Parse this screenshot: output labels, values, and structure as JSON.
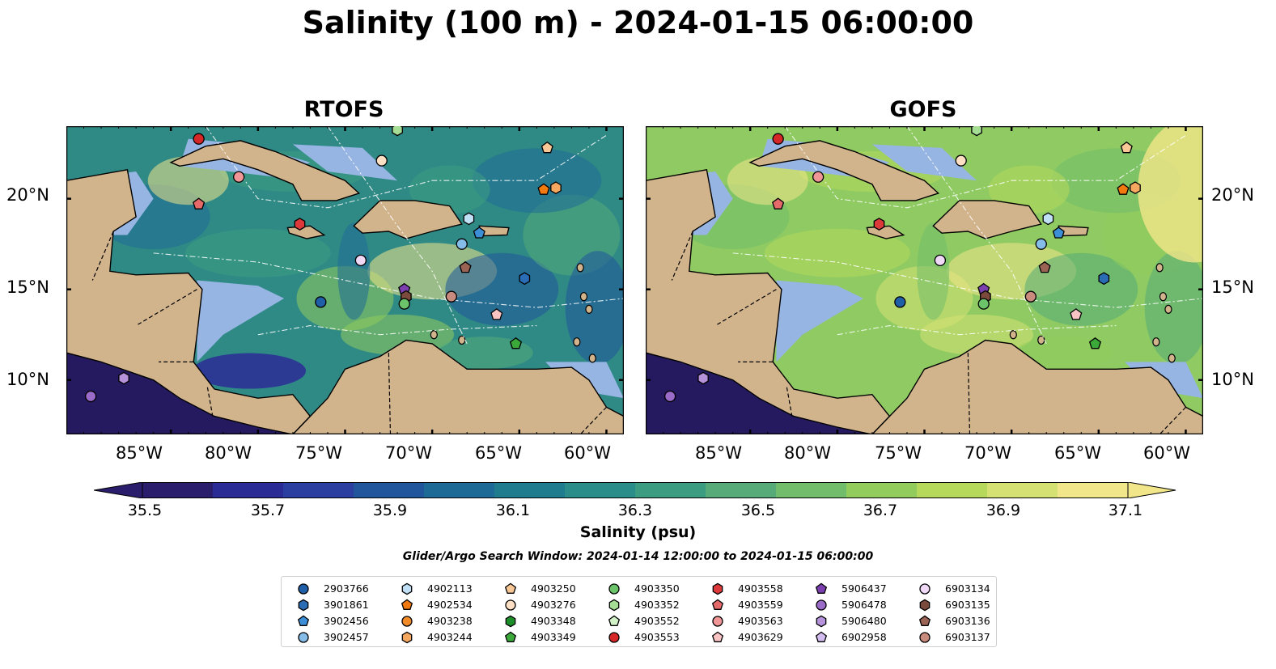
{
  "figure": {
    "title": "Salinity (100 m) - 2024-01-15 06:00:00",
    "panels": [
      {
        "title": "RTOFS"
      },
      {
        "title": "GOFS"
      }
    ],
    "lat_ticks": [
      "20°N",
      "15°N",
      "10°N"
    ],
    "lon_ticks": [
      "85°W",
      "80°W",
      "75°W",
      "70°W",
      "65°W",
      "60°W"
    ],
    "colors": {
      "land": "#d2b48c",
      "shallow_ocean": "#96b5e3",
      "deep_purple": "#251a5f",
      "rtofs_sea": "#2f8a86",
      "gofs_sea": "#8fcb62"
    }
  },
  "colorbar": {
    "label": "Salinity (psu)",
    "ticks": [
      "35.5",
      "35.7",
      "35.9",
      "36.1",
      "36.3",
      "36.5",
      "36.7",
      "36.9",
      "37.1"
    ],
    "min": 35.5,
    "max": 37.1,
    "extend": "both",
    "colors": [
      "#2a1d6b",
      "#2b2b96",
      "#2a3f9f",
      "#21569c",
      "#1e6a96",
      "#1f7c8f",
      "#2b8d89",
      "#3c9c82",
      "#56ab79",
      "#72bd6b",
      "#91cc5c",
      "#b6d95c",
      "#d6e173",
      "#f2e68a"
    ]
  },
  "search_window": "Glider/Argo Search Window: 2024-01-14 12:00:00 to 2024-01-15 06:00:00",
  "legend": [
    {
      "id": "2903766",
      "shape": "circle",
      "color": "#1f5fa8"
    },
    {
      "id": "3901861",
      "shape": "hexagon",
      "color": "#2a6db5"
    },
    {
      "id": "3902456",
      "shape": "pentagon",
      "color": "#3c8fd6"
    },
    {
      "id": "3902457",
      "shape": "circle",
      "color": "#86bde8"
    },
    {
      "id": "4902113",
      "shape": "hexagon",
      "color": "#bfe0f5"
    },
    {
      "id": "4902534",
      "shape": "pentagon",
      "color": "#f07a10"
    },
    {
      "id": "4903238",
      "shape": "circle",
      "color": "#f28c28"
    },
    {
      "id": "4903244",
      "shape": "hexagon",
      "color": "#f7a860"
    },
    {
      "id": "4903250",
      "shape": "pentagon",
      "color": "#f9c896"
    },
    {
      "id": "4903276",
      "shape": "circle",
      "color": "#fde0c4"
    },
    {
      "id": "4903348",
      "shape": "hexagon",
      "color": "#1e8e2a"
    },
    {
      "id": "4903349",
      "shape": "pentagon",
      "color": "#3aa93a"
    },
    {
      "id": "4903350",
      "shape": "circle",
      "color": "#6cc46a"
    },
    {
      "id": "4903352",
      "shape": "hexagon",
      "color": "#a6dd94"
    },
    {
      "id": "4903552",
      "shape": "pentagon",
      "color": "#d2f2c8"
    },
    {
      "id": "4903553",
      "shape": "circle",
      "color": "#d62728"
    },
    {
      "id": "4903558",
      "shape": "hexagon",
      "color": "#dc3a3a"
    },
    {
      "id": "4903559",
      "shape": "pentagon",
      "color": "#e76a6a"
    },
    {
      "id": "4903563",
      "shape": "circle",
      "color": "#f09696"
    },
    {
      "id": "4903629",
      "shape": "pentagon",
      "color": "#fbc4c4"
    },
    {
      "id": "5906437",
      "shape": "pentagon",
      "color": "#7b3fb0"
    },
    {
      "id": "5906478",
      "shape": "circle",
      "color": "#9a6bc8"
    },
    {
      "id": "5906480",
      "shape": "hexagon",
      "color": "#b592da"
    },
    {
      "id": "6902958",
      "shape": "pentagon",
      "color": "#d3bdf0"
    },
    {
      "id": "6903134",
      "shape": "circle",
      "color": "#efd9f7"
    },
    {
      "id": "6903135",
      "shape": "hexagon",
      "color": "#7a4a3c"
    },
    {
      "id": "6903136",
      "shape": "pentagon",
      "color": "#9a6354"
    },
    {
      "id": "6903137",
      "shape": "circle",
      "color": "#c98b7d"
    }
  ],
  "floats": [
    {
      "id": "4903553",
      "shape": "circle",
      "color": "#d62728",
      "lon": -83.4,
      "lat": 23.3
    },
    {
      "id": "4903563",
      "shape": "circle",
      "color": "#f09696",
      "lon": -81.1,
      "lat": 21.2
    },
    {
      "id": "4903559",
      "shape": "pentagon",
      "color": "#e76a6a",
      "lon": -83.4,
      "lat": 19.7
    },
    {
      "id": "4903558",
      "shape": "hexagon",
      "color": "#dc3a3a",
      "lon": -77.6,
      "lat": 18.6
    },
    {
      "id": "4903276",
      "shape": "circle",
      "color": "#fde0c4",
      "lon": -72.9,
      "lat": 22.1
    },
    {
      "id": "4903352",
      "shape": "hexagon",
      "color": "#a6dd94",
      "lon": -72.0,
      "lat": 23.8
    },
    {
      "id": "4903250",
      "shape": "pentagon",
      "color": "#f9c896",
      "lon": -63.4,
      "lat": 22.8
    },
    {
      "id": "4902534",
      "shape": "pentagon",
      "color": "#f07a10",
      "lon": -63.6,
      "lat": 20.5
    },
    {
      "id": "4903244",
      "shape": "hexagon",
      "color": "#f7a860",
      "lon": -62.9,
      "lat": 20.6
    },
    {
      "id": "4902113",
      "shape": "hexagon",
      "color": "#bfe0f5",
      "lon": -67.9,
      "lat": 18.9
    },
    {
      "id": "3902456",
      "shape": "pentagon",
      "color": "#3c8fd6",
      "lon": -67.3,
      "lat": 18.1
    },
    {
      "id": "3902457",
      "shape": "circle",
      "color": "#86bde8",
      "lon": -68.3,
      "lat": 17.5
    },
    {
      "id": "6903134",
      "shape": "circle",
      "color": "#efd9f7",
      "lon": -74.1,
      "lat": 16.6
    },
    {
      "id": "6903136",
      "shape": "pentagon",
      "color": "#9a6354",
      "lon": -68.1,
      "lat": 16.2
    },
    {
      "id": "3901861",
      "shape": "hexagon",
      "color": "#2a6db5",
      "lon": -64.7,
      "lat": 15.6
    },
    {
      "id": "5906437",
      "shape": "pentagon",
      "color": "#7b3fb0",
      "lon": -71.6,
      "lat": 15.0
    },
    {
      "id": "6903135",
      "shape": "hexagon",
      "color": "#7a4a3c",
      "lon": -71.5,
      "lat": 14.6
    },
    {
      "id": "4903350",
      "shape": "circle",
      "color": "#6cc46a",
      "lon": -71.6,
      "lat": 14.2
    },
    {
      "id": "6903137",
      "shape": "circle",
      "color": "#c98b7d",
      "lon": -68.9,
      "lat": 14.6
    },
    {
      "id": "2903766",
      "shape": "circle",
      "color": "#1f5fa8",
      "lon": -76.4,
      "lat": 14.3
    },
    {
      "id": "4903629",
      "shape": "pentagon",
      "color": "#fbc4c4",
      "lon": -66.3,
      "lat": 13.6
    },
    {
      "id": "4903349",
      "shape": "pentagon",
      "color": "#3aa93a",
      "lon": -65.2,
      "lat": 12.0
    },
    {
      "id": "5906478",
      "shape": "circle",
      "color": "#9a6bc8",
      "lon": -89.6,
      "lat": 9.1
    },
    {
      "id": "5906480",
      "shape": "hexagon",
      "color": "#b592da",
      "lon": -87.7,
      "lat": 10.1
    }
  ]
}
